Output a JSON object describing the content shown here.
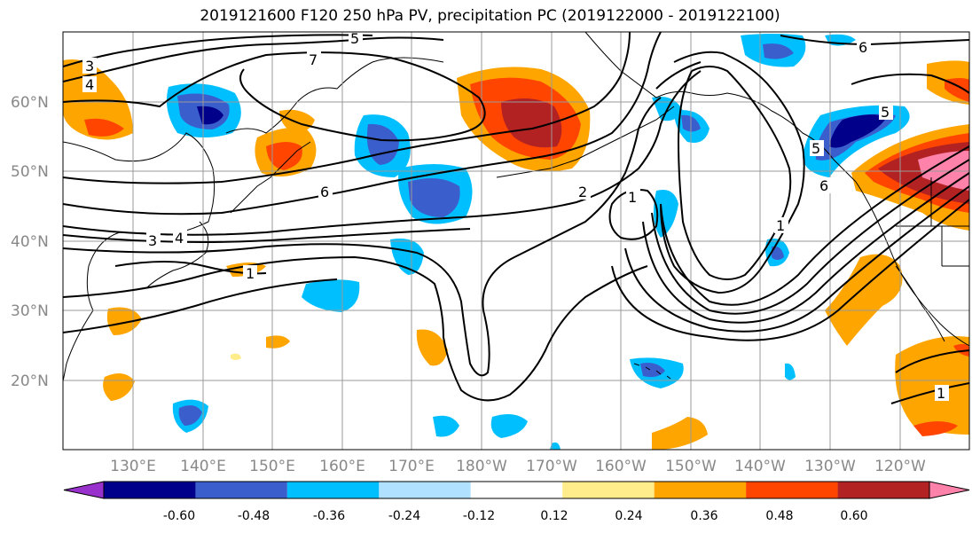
{
  "title": "2019121600 F120 250 hPa PV, precipitation PC (2019122000 - 2019122100)",
  "latitude_labels": [
    "60°N",
    "50°N",
    "40°N",
    "30°N",
    "20°N"
  ],
  "longitude_labels": [
    "130°E",
    "140°E",
    "150°E",
    "160°E",
    "170°E",
    "180°W",
    "170°W",
    "160°W",
    "150°W",
    "140°W",
    "130°W",
    "120°W"
  ],
  "colorbar": {
    "colors": [
      "#9932cc",
      "#00008b",
      "#3a5fcd",
      "#00bfff",
      "#b0e2ff",
      "#ffffff",
      "#ffec8b",
      "#ffa500",
      "#ff4500",
      "#b22222",
      "#ff82ab"
    ],
    "tick_labels": [
      "-0.60",
      "-0.48",
      "-0.36",
      "-0.24",
      "-0.12",
      "0.12",
      "0.24",
      "0.36",
      "0.48",
      "0.60"
    ]
  },
  "contour_labels": [
    "3",
    "4",
    "5",
    "7",
    "5",
    "6",
    "6",
    "3",
    "4",
    "1",
    "2",
    "1",
    "1",
    "5",
    "6",
    "1"
  ]
}
